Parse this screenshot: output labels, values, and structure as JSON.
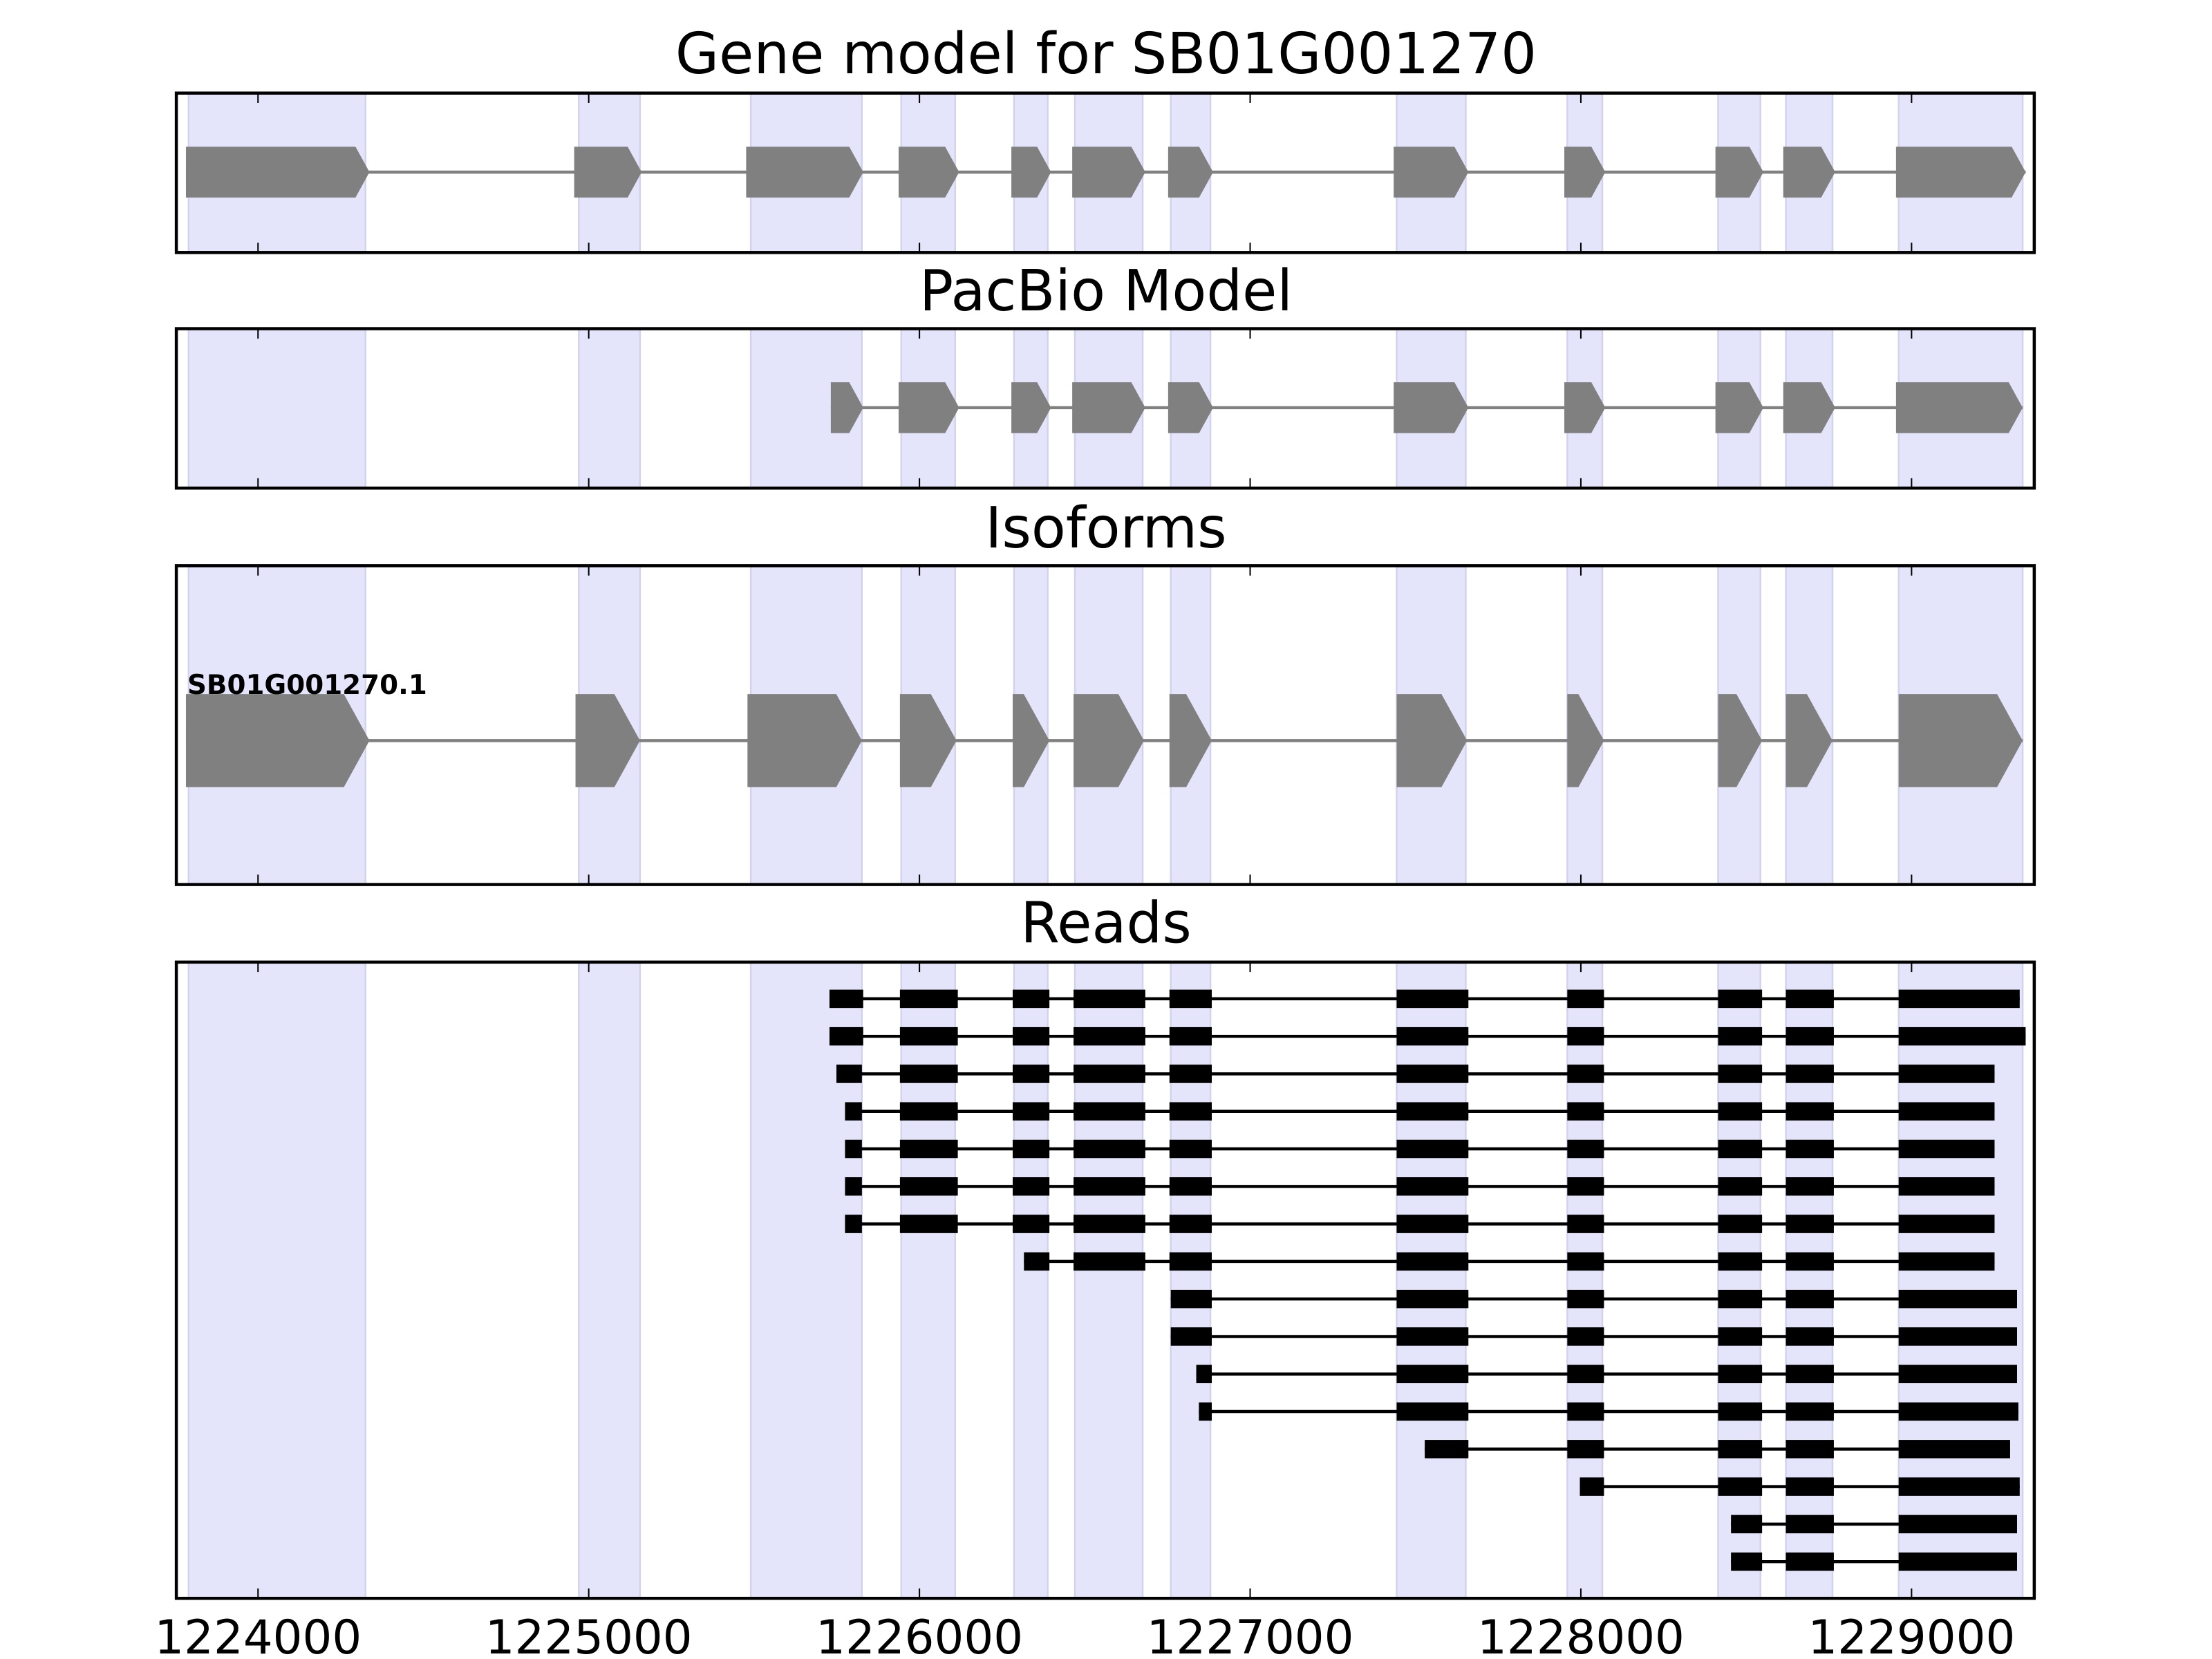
{
  "chart_data": {
    "type": "gene-track",
    "xlim": [
      1223753,
      1229371
    ],
    "x_ticks": [
      1224000,
      1225000,
      1226000,
      1227000,
      1228000,
      1229000
    ],
    "x_tick_labels": [
      "1224000",
      "1225000",
      "1226000",
      "1227000",
      "1228000",
      "1229000"
    ],
    "colors": {
      "highlight": "#e4e4fb",
      "highlight_edge": "#d2d2ef",
      "model": "#808080",
      "read": "#000000"
    },
    "highlight_regions": [
      [
        1223790,
        1224325
      ],
      [
        1224970,
        1225155
      ],
      [
        1225490,
        1225826
      ],
      [
        1225945,
        1226108
      ],
      [
        1226286,
        1226388
      ],
      [
        1226470,
        1226675
      ],
      [
        1226760,
        1226880
      ],
      [
        1227443,
        1227652
      ],
      [
        1227959,
        1228065
      ],
      [
        1228415,
        1228543
      ],
      [
        1228620,
        1228761
      ],
      [
        1228961,
        1229336
      ]
    ],
    "panels": [
      {
        "title": "Gene model for SB01G001270",
        "kind": "model",
        "strand": "+",
        "exons": [
          [
            1223782,
            1224337
          ],
          [
            1224956,
            1225160
          ],
          [
            1225476,
            1225830
          ],
          [
            1225937,
            1226120
          ],
          [
            1226278,
            1226398
          ],
          [
            1226462,
            1226683
          ],
          [
            1226752,
            1226888
          ],
          [
            1227434,
            1227660
          ],
          [
            1227950,
            1228074
          ],
          [
            1228407,
            1228552
          ],
          [
            1228612,
            1228769
          ],
          [
            1228953,
            1229345
          ]
        ]
      },
      {
        "title": "PacBio Model",
        "kind": "model",
        "strand": "+",
        "exons": [
          [
            1225732,
            1225830
          ],
          [
            1225937,
            1226120
          ],
          [
            1226278,
            1226398
          ],
          [
            1226462,
            1226683
          ],
          [
            1226752,
            1226888
          ],
          [
            1227434,
            1227660
          ],
          [
            1227950,
            1228074
          ],
          [
            1228407,
            1228552
          ],
          [
            1228612,
            1228769
          ],
          [
            1228953,
            1229336
          ]
        ]
      },
      {
        "title": "Isoforms",
        "kind": "isoforms",
        "isoforms": [
          {
            "label": "SB01G001270.1",
            "strand": "+",
            "exons": [
              [
                1223782,
                1224337
              ],
              [
                1224960,
                1225155
              ],
              [
                1225480,
                1225826
              ],
              [
                1225941,
                1226112
              ],
              [
                1226282,
                1226393
              ],
              [
                1226466,
                1226679
              ],
              [
                1226756,
                1226884
              ],
              [
                1227443,
                1227656
              ],
              [
                1227959,
                1228070
              ],
              [
                1228415,
                1228548
              ],
              [
                1228620,
                1228761
              ],
              [
                1228961,
                1229336
              ]
            ]
          }
        ]
      },
      {
        "title": "Reads",
        "kind": "reads",
        "reads": [
          [
            [
              1225728,
              1225830
            ],
            [
              1225941,
              1226116
            ],
            [
              1226282,
              1226393
            ],
            [
              1226466,
              1226683
            ],
            [
              1226756,
              1226884
            ],
            [
              1227443,
              1227660
            ],
            [
              1227959,
              1228070
            ],
            [
              1228415,
              1228548
            ],
            [
              1228620,
              1228765
            ],
            [
              1228961,
              1229327
            ]
          ],
          [
            [
              1225728,
              1225830
            ],
            [
              1225941,
              1226116
            ],
            [
              1226282,
              1226393
            ],
            [
              1226466,
              1226683
            ],
            [
              1226756,
              1226884
            ],
            [
              1227443,
              1227660
            ],
            [
              1227959,
              1228070
            ],
            [
              1228415,
              1228548
            ],
            [
              1228620,
              1228765
            ],
            [
              1228961,
              1229345
            ]
          ],
          [
            [
              1225749,
              1225826
            ],
            [
              1225941,
              1226116
            ],
            [
              1226282,
              1226393
            ],
            [
              1226466,
              1226683
            ],
            [
              1226756,
              1226884
            ],
            [
              1227443,
              1227660
            ],
            [
              1227959,
              1228070
            ],
            [
              1228415,
              1228548
            ],
            [
              1228620,
              1228765
            ],
            [
              1228961,
              1229251
            ]
          ],
          [
            [
              1225775,
              1225826
            ],
            [
              1225941,
              1226116
            ],
            [
              1226282,
              1226393
            ],
            [
              1226466,
              1226683
            ],
            [
              1226756,
              1226884
            ],
            [
              1227443,
              1227660
            ],
            [
              1227959,
              1228070
            ],
            [
              1228415,
              1228548
            ],
            [
              1228620,
              1228765
            ],
            [
              1228961,
              1229251
            ]
          ],
          [
            [
              1225775,
              1225826
            ],
            [
              1225941,
              1226116
            ],
            [
              1226282,
              1226393
            ],
            [
              1226466,
              1226683
            ],
            [
              1226756,
              1226884
            ],
            [
              1227443,
              1227660
            ],
            [
              1227959,
              1228070
            ],
            [
              1228415,
              1228548
            ],
            [
              1228620,
              1228765
            ],
            [
              1228961,
              1229251
            ]
          ],
          [
            [
              1225775,
              1225826
            ],
            [
              1225941,
              1226116
            ],
            [
              1226282,
              1226393
            ],
            [
              1226466,
              1226683
            ],
            [
              1226756,
              1226884
            ],
            [
              1227443,
              1227660
            ],
            [
              1227959,
              1228070
            ],
            [
              1228415,
              1228548
            ],
            [
              1228620,
              1228765
            ],
            [
              1228961,
              1229251
            ]
          ],
          [
            [
              1225775,
              1225826
            ],
            [
              1225941,
              1226116
            ],
            [
              1226282,
              1226393
            ],
            [
              1226466,
              1226683
            ],
            [
              1226756,
              1226884
            ],
            [
              1227443,
              1227660
            ],
            [
              1227959,
              1228070
            ],
            [
              1228415,
              1228548
            ],
            [
              1228620,
              1228765
            ],
            [
              1228961,
              1229251
            ]
          ],
          [
            [
              1226316,
              1226393
            ],
            [
              1226466,
              1226683
            ],
            [
              1226756,
              1226884
            ],
            [
              1227443,
              1227660
            ],
            [
              1227959,
              1228070
            ],
            [
              1228415,
              1228548
            ],
            [
              1228620,
              1228765
            ],
            [
              1228961,
              1229251
            ]
          ],
          [
            [
              1226760,
              1226884
            ],
            [
              1227443,
              1227660
            ],
            [
              1227959,
              1228070
            ],
            [
              1228415,
              1228548
            ],
            [
              1228620,
              1228765
            ],
            [
              1228961,
              1229319
            ]
          ],
          [
            [
              1226760,
              1226884
            ],
            [
              1227443,
              1227660
            ],
            [
              1227959,
              1228070
            ],
            [
              1228415,
              1228548
            ],
            [
              1228620,
              1228765
            ],
            [
              1228961,
              1229319
            ]
          ],
          [
            [
              1226837,
              1226884
            ],
            [
              1227443,
              1227660
            ],
            [
              1227959,
              1228070
            ],
            [
              1228415,
              1228548
            ],
            [
              1228620,
              1228765
            ],
            [
              1228961,
              1229319
            ]
          ],
          [
            [
              1226845,
              1226884
            ],
            [
              1227443,
              1227660
            ],
            [
              1227959,
              1228070
            ],
            [
              1228415,
              1228548
            ],
            [
              1228620,
              1228765
            ],
            [
              1228961,
              1229323
            ]
          ],
          [
            [
              1227528,
              1227660
            ],
            [
              1227959,
              1228070
            ],
            [
              1228415,
              1228548
            ],
            [
              1228620,
              1228765
            ],
            [
              1228961,
              1229298
            ]
          ],
          [
            [
              1227997,
              1228070
            ],
            [
              1228415,
              1228548
            ],
            [
              1228620,
              1228765
            ],
            [
              1228961,
              1229327
            ]
          ],
          [
            [
              1228454,
              1228548
            ],
            [
              1228620,
              1228765
            ],
            [
              1228961,
              1229319
            ]
          ],
          [
            [
              1228454,
              1228548
            ],
            [
              1228620,
              1228765
            ],
            [
              1228961,
              1229319
            ]
          ]
        ]
      }
    ]
  }
}
